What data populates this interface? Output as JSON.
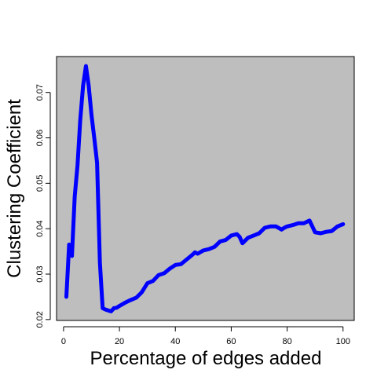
{
  "chart_data": {
    "type": "line",
    "title": "",
    "xlabel": "Percentage of edges added",
    "ylabel": "Clustering Coefficient",
    "xlim": [
      -2.5,
      104
    ],
    "ylim": [
      0.0198,
      0.0779
    ],
    "x_ticks": [
      0,
      20,
      40,
      60,
      80,
      100
    ],
    "x_tick_labels": [
      "0",
      "20",
      "40",
      "60",
      "80",
      "100"
    ],
    "y_ticks": [
      0.02,
      0.03,
      0.04,
      0.05,
      0.06,
      0.07
    ],
    "y_tick_labels": [
      "0.02",
      "0.03",
      "0.04",
      "0.05",
      "0.06",
      "0.07"
    ],
    "grid": false,
    "legend": "none",
    "plot_background": "#bebebe",
    "line_color": "#0000ff",
    "series": [
      {
        "x": [
          1,
          2,
          3,
          4,
          5,
          6,
          7,
          8,
          9,
          10,
          11,
          12,
          13,
          14,
          15,
          16,
          17,
          18,
          19,
          20,
          22,
          24,
          26,
          28,
          30,
          32,
          34,
          36,
          38,
          40,
          42,
          44,
          46,
          47,
          48,
          50,
          52,
          54,
          56,
          58,
          60,
          62,
          63,
          64,
          66,
          68,
          70,
          72,
          74,
          76,
          78,
          79,
          80,
          82,
          84,
          86,
          88,
          90,
          92,
          94,
          96,
          98,
          100
        ],
        "y": [
          0.025,
          0.0365,
          0.034,
          0.047,
          0.054,
          0.064,
          0.0715,
          0.0758,
          0.0715,
          0.065,
          0.06,
          0.0545,
          0.0325,
          0.0225,
          0.0222,
          0.022,
          0.0218,
          0.0225,
          0.0226,
          0.023,
          0.0237,
          0.0243,
          0.0248,
          0.026,
          0.028,
          0.0285,
          0.0298,
          0.0302,
          0.0312,
          0.032,
          0.0322,
          0.0332,
          0.0342,
          0.0348,
          0.0345,
          0.0352,
          0.0355,
          0.036,
          0.0372,
          0.0375,
          0.0385,
          0.0388,
          0.0382,
          0.0368,
          0.038,
          0.0385,
          0.039,
          0.0402,
          0.0405,
          0.0405,
          0.0398,
          0.0402,
          0.0405,
          0.0408,
          0.0412,
          0.0412,
          0.0418,
          0.0392,
          0.039,
          0.0393,
          0.0395,
          0.0405,
          0.041
        ]
      }
    ]
  }
}
